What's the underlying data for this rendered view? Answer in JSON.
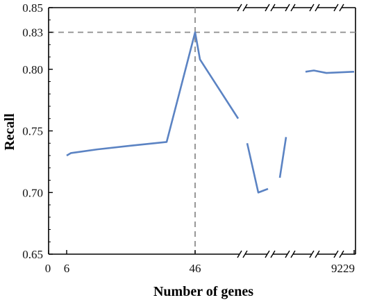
{
  "chart_data": {
    "type": "line",
    "title": "",
    "xlabel": "Number of genes",
    "ylabel": "Recall",
    "ylim": [
      0.65,
      0.85
    ],
    "yticks": [
      "0.65",
      "0.70",
      "0.75",
      "0.80",
      "0.83",
      "0.85"
    ],
    "xtick_labels": [
      "0",
      "6",
      "46",
      "9229"
    ],
    "axis_breaks": "broken x axis: linear from 0 to 46, then compressed segments up to 9229 marked with break symbols (//) on top and bottom axes",
    "reference_lines": {
      "x": "46",
      "y": "0.83",
      "style": "dashed gray"
    },
    "series": [
      {
        "color": "#5b83c3",
        "points": [
          {
            "x": "6",
            "y": 0.73
          },
          {
            "x": "8",
            "y": 0.732
          },
          {
            "x": "17",
            "y": 0.735
          },
          {
            "x": "27",
            "y": 0.738
          },
          {
            "x": "38",
            "y": 0.741
          },
          {
            "x": "46",
            "y": 0.83
          },
          {
            "x": "48",
            "y": 0.808
          },
          {
            "x": "break-1",
            "y": 0.76
          },
          {
            "x": "break-1",
            "y": 0.74
          },
          {
            "x": "break-2",
            "y": 0.7
          },
          {
            "x": "break-2",
            "y": 0.703
          },
          {
            "x": "break-3",
            "y": 0.712
          },
          {
            "x": "break-3",
            "y": 0.745
          },
          {
            "x": "break-4",
            "y": 0.798
          },
          {
            "x": "break-4",
            "y": 0.799
          },
          {
            "x": "break-5",
            "y": 0.797
          },
          {
            "x": "9229",
            "y": 0.798
          }
        ]
      }
    ]
  },
  "colors": {
    "line": "#5b83c3",
    "reference": "#8c8c8c",
    "axis": "#000000"
  }
}
